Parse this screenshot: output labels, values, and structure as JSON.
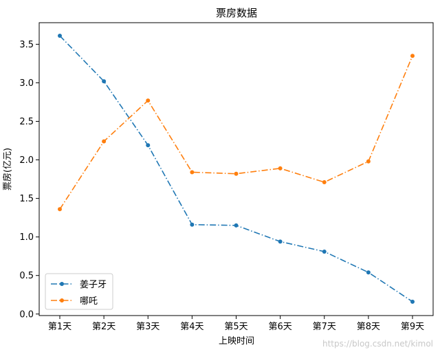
{
  "chart_data": {
    "type": "line",
    "title": "票房数据",
    "xlabel": "上映时间",
    "ylabel": "票房(亿元)",
    "categories": [
      "第1天",
      "第2天",
      "第3天",
      "第4天",
      "第5天",
      "第6天",
      "第7天",
      "第8天",
      "第9天"
    ],
    "ylim": [
      -0.02,
      3.78
    ],
    "yticks": [
      "0.0",
      "0.5",
      "1.0",
      "1.5",
      "2.0",
      "2.5",
      "3.0",
      "3.5"
    ],
    "grid": false,
    "legend_position": "lower-left",
    "line_style": "dash-dot",
    "marker": "circle",
    "series": [
      {
        "name": "姜子牙",
        "color": "#1f77b4",
        "values": [
          3.61,
          3.02,
          2.19,
          1.16,
          1.15,
          0.94,
          0.81,
          0.54,
          0.16
        ]
      },
      {
        "name": "哪吒",
        "color": "#ff7f0e",
        "values": [
          1.36,
          2.24,
          2.77,
          1.84,
          1.82,
          1.89,
          1.71,
          1.98,
          3.35
        ]
      }
    ]
  },
  "watermark": "https://blog.csdn.net/kimol"
}
